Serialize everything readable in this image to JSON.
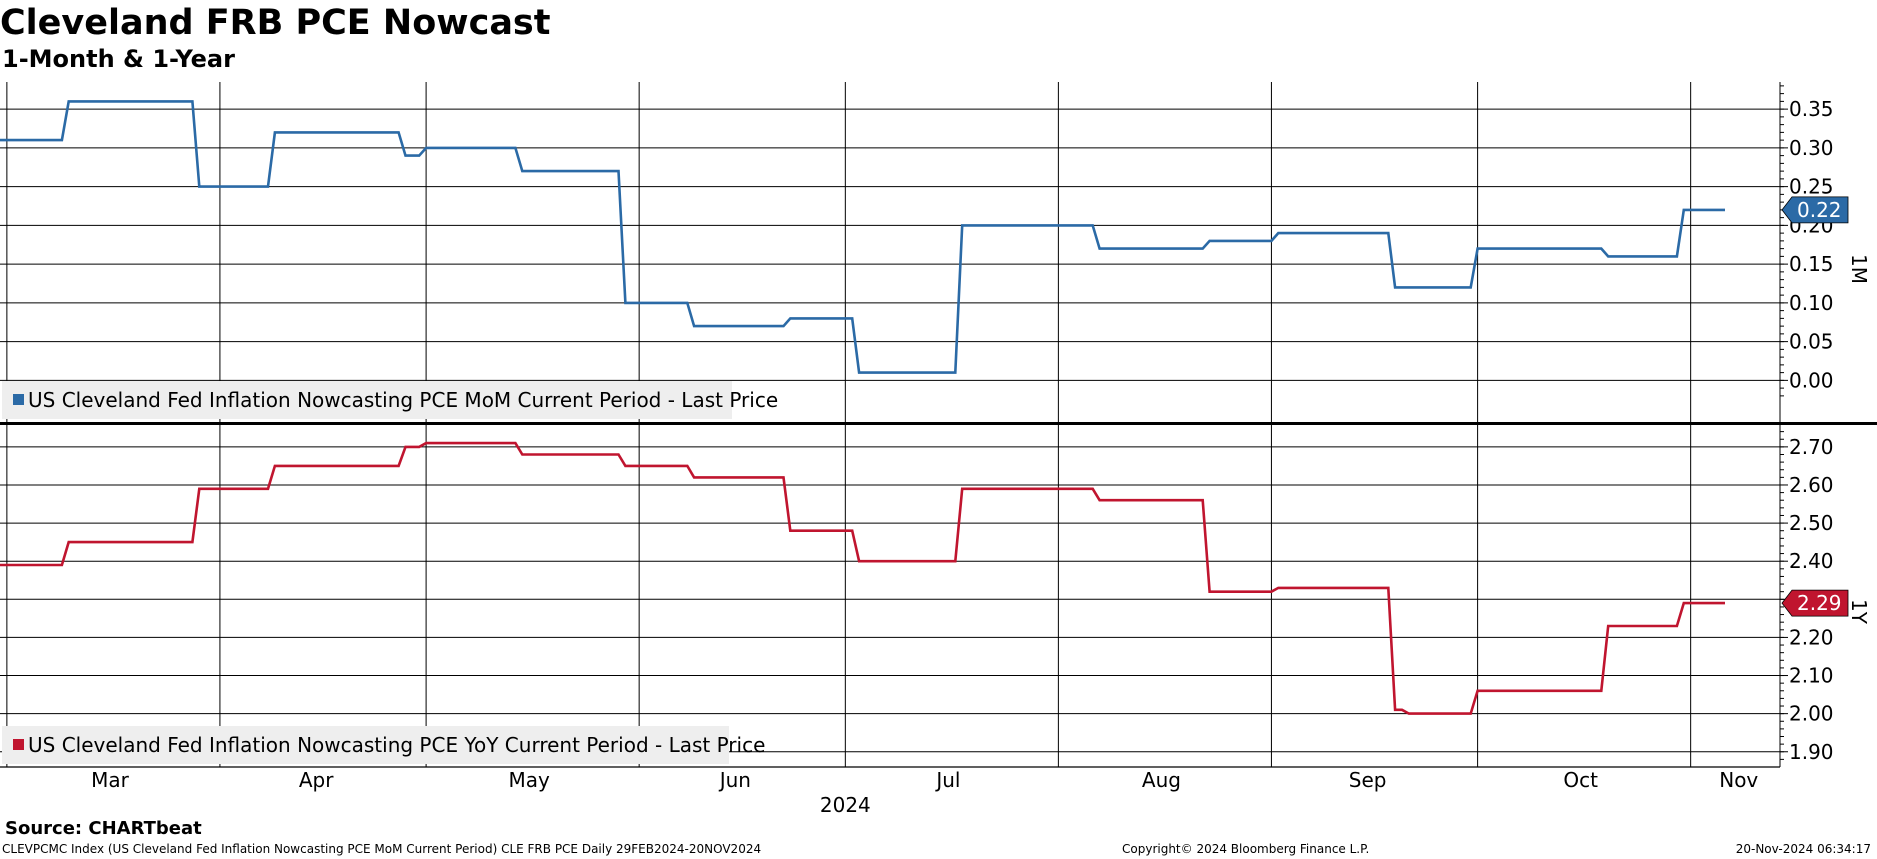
{
  "title": "Cleveland FRB PCE Nowcast",
  "subtitle": "1-Month & 1-Year",
  "source": "Source: CHARTbeat",
  "footer": {
    "left": "CLEVPCMC Index (US Cleveland Fed Inflation Nowcasting PCE MoM Current Period) CLE FRB PCE  Daily 29FEB2024-20NOV2024",
    "center": "Copyright© 2024 Bloomberg Finance L.P.",
    "right": "20-Nov-2024 06:34:17"
  },
  "colors": {
    "mom": "#2b6aa6",
    "yoy": "#c0152f",
    "grid": "#000000",
    "legend_bg": "#eeeeee"
  },
  "chart_data": [
    {
      "type": "line",
      "panel": "1M",
      "axis_side": "right",
      "series": [
        {
          "name": "US Cleveland Fed Inflation Nowcasting PCE MoM Current Period - Last Price",
          "last_value": "0.22",
          "x": [
            "2024-02-29",
            "2024-03-09",
            "2024-03-10",
            "2024-03-28",
            "2024-03-29",
            "2024-04-08",
            "2024-04-09",
            "2024-04-27",
            "2024-04-28",
            "2024-04-30",
            "2024-05-01",
            "2024-05-14",
            "2024-05-15",
            "2024-05-29",
            "2024-05-30",
            "2024-06-08",
            "2024-06-09",
            "2024-06-22",
            "2024-06-23",
            "2024-07-02",
            "2024-07-03",
            "2024-07-17",
            "2024-07-18",
            "2024-08-06",
            "2024-08-07",
            "2024-08-22",
            "2024-08-23",
            "2024-09-01",
            "2024-09-02",
            "2024-09-18",
            "2024-09-19",
            "2024-09-30",
            "2024-10-01",
            "2024-10-19",
            "2024-10-20",
            "2024-10-30",
            "2024-10-31",
            "2024-11-06"
          ],
          "y": [
            0.31,
            0.31,
            0.36,
            0.36,
            0.25,
            0.25,
            0.32,
            0.32,
            0.29,
            0.29,
            0.3,
            0.3,
            0.27,
            0.27,
            0.1,
            0.1,
            0.07,
            0.07,
            0.08,
            0.08,
            0.01,
            0.01,
            0.2,
            0.2,
            0.17,
            0.17,
            0.18,
            0.18,
            0.19,
            0.19,
            0.12,
            0.12,
            0.17,
            0.17,
            0.16,
            0.16,
            0.22,
            0.22
          ]
        }
      ],
      "y_ticks": [
        "0.35",
        "0.30",
        "0.25",
        "0.20",
        "0.15",
        "0.10",
        "0.05",
        "0.00"
      ],
      "ylim": [
        -0.055,
        0.385
      ],
      "grid": true,
      "legend": "bottom-left"
    },
    {
      "type": "line",
      "panel": "1Y",
      "axis_side": "right",
      "series": [
        {
          "name": "US Cleveland Fed Inflation Nowcasting PCE YoY Current Period - Last Price",
          "last_value": "2.29",
          "x": [
            "2024-02-29",
            "2024-03-09",
            "2024-03-10",
            "2024-03-28",
            "2024-03-29",
            "2024-04-08",
            "2024-04-09",
            "2024-04-27",
            "2024-04-28",
            "2024-04-30",
            "2024-05-01",
            "2024-05-14",
            "2024-05-15",
            "2024-05-29",
            "2024-05-30",
            "2024-06-08",
            "2024-06-09",
            "2024-06-22",
            "2024-06-23",
            "2024-07-02",
            "2024-07-03",
            "2024-07-17",
            "2024-07-18",
            "2024-08-06",
            "2024-08-07",
            "2024-08-22",
            "2024-08-23",
            "2024-09-01",
            "2024-09-02",
            "2024-09-18",
            "2024-09-19",
            "2024-09-20",
            "2024-09-21",
            "2024-09-30",
            "2024-10-01",
            "2024-10-19",
            "2024-10-20",
            "2024-10-30",
            "2024-10-31",
            "2024-11-06"
          ],
          "y": [
            2.39,
            2.39,
            2.45,
            2.45,
            2.59,
            2.59,
            2.65,
            2.65,
            2.7,
            2.7,
            2.71,
            2.71,
            2.68,
            2.68,
            2.65,
            2.65,
            2.62,
            2.62,
            2.48,
            2.48,
            2.4,
            2.4,
            2.59,
            2.59,
            2.56,
            2.56,
            2.32,
            2.32,
            2.33,
            2.33,
            2.01,
            2.01,
            2.0,
            2.0,
            2.06,
            2.06,
            2.23,
            2.23,
            2.29,
            2.29
          ]
        }
      ],
      "y_ticks": [
        "2.70",
        "2.60",
        "2.50",
        "2.40",
        "2.30",
        "2.20",
        "2.10",
        "2.00",
        "1.90"
      ],
      "ylim": [
        1.86,
        2.76
      ],
      "grid": true,
      "legend": "bottom-left"
    }
  ],
  "x_axis": {
    "start": "2024-02-29",
    "end": "2024-11-14",
    "tick_labels": [
      {
        "label": "Mar",
        "date": "2024-03-16"
      },
      {
        "label": "Apr",
        "date": "2024-04-15"
      },
      {
        "label": "May",
        "date": "2024-05-16"
      },
      {
        "label": "Jun",
        "date": "2024-06-15"
      },
      {
        "label": "Jul",
        "date": "2024-07-16"
      },
      {
        "label": "Aug",
        "date": "2024-08-16"
      },
      {
        "label": "Sep",
        "date": "2024-09-15"
      },
      {
        "label": "Oct",
        "date": "2024-10-16"
      },
      {
        "label": "Nov",
        "date": "2024-11-08"
      }
    ],
    "gridlines": [
      "2024-03-01",
      "2024-04-01",
      "2024-05-01",
      "2024-06-01",
      "2024-07-01",
      "2024-08-01",
      "2024-09-01",
      "2024-10-01",
      "2024-11-01"
    ],
    "year_label": "2024"
  }
}
